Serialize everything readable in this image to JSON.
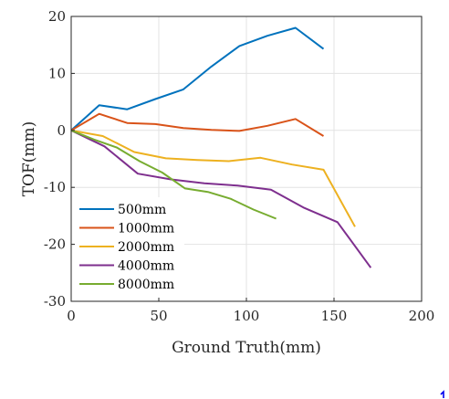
{
  "chart_data": {
    "type": "line",
    "title": "",
    "xlabel": "Ground Truth(mm)",
    "ylabel": "TOF(mm)",
    "xlim": [
      0,
      200
    ],
    "ylim": [
      -30,
      20
    ],
    "xticks": [
      0,
      50,
      100,
      150,
      200
    ],
    "yticks": [
      -30,
      -20,
      -10,
      0,
      10,
      20
    ],
    "grid": true,
    "legend_location": "bottom-left",
    "series": [
      {
        "name": "500mm",
        "color": "#0072BD",
        "x": [
          0,
          16,
          32,
          48,
          64,
          80,
          96,
          112,
          128,
          144
        ],
        "y": [
          0,
          4.4,
          3.7,
          5.5,
          7.2,
          11.2,
          14.8,
          16.6,
          18.0,
          14.3
        ]
      },
      {
        "name": "1000mm",
        "color": "#D95319",
        "x": [
          0,
          16,
          32,
          48,
          64,
          80,
          96,
          112,
          128,
          144
        ],
        "y": [
          0,
          2.9,
          1.3,
          1.1,
          0.4,
          0.1,
          -0.1,
          0.8,
          2.0,
          -1.0
        ]
      },
      {
        "name": "2000mm",
        "color": "#EDB120",
        "x": [
          0,
          18,
          36,
          54,
          72,
          90,
          108,
          126,
          144,
          162
        ],
        "y": [
          0,
          -1.0,
          -3.8,
          -4.9,
          -5.2,
          -5.4,
          -4.8,
          -6.0,
          -6.9,
          -16.9
        ]
      },
      {
        "name": "4000mm",
        "color": "#7E2F8E",
        "x": [
          0,
          19,
          38,
          57,
          76,
          95,
          114,
          133,
          152,
          171
        ],
        "y": [
          0,
          -2.8,
          -7.6,
          -8.6,
          -9.3,
          -9.7,
          -10.4,
          -13.6,
          -16.1,
          -24.1
        ]
      },
      {
        "name": "8000mm",
        "color": "#77AC30",
        "x": [
          0,
          13,
          26,
          39,
          52,
          65,
          78,
          91,
          104,
          117
        ],
        "y": [
          0,
          -1.6,
          -3.0,
          -5.4,
          -7.4,
          -10.2,
          -10.8,
          -12.0,
          -13.9,
          -15.5
        ]
      }
    ]
  },
  "corner_mark": {
    "color": "#0000ee"
  }
}
